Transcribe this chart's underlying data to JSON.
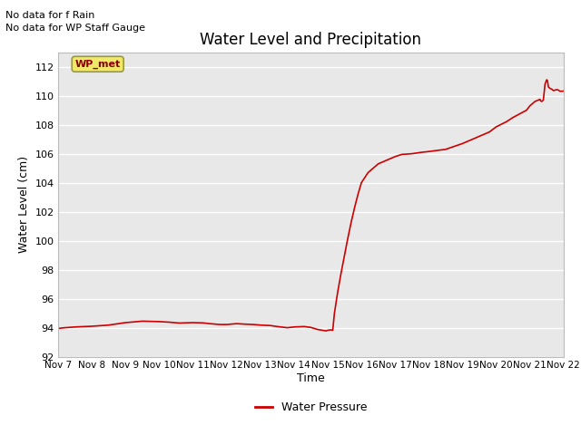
{
  "title": "Water Level and Precipitation",
  "xlabel": "Time",
  "ylabel": "Water Level (cm)",
  "ylim": [
    92,
    113
  ],
  "yticks": [
    92,
    94,
    96,
    98,
    100,
    102,
    104,
    106,
    108,
    110,
    112
  ],
  "background_color": "#e8e8e8",
  "line_color": "#cc0000",
  "legend_label": "Water Pressure",
  "legend_line_color": "#cc0000",
  "annotation_line1": "No data for f Rain",
  "annotation_line2": "No data for WP Staff Gauge",
  "wp_met_label": "WP_met",
  "wp_met_bg": "#f0e868",
  "wp_met_border": "#999944",
  "x_tick_labels": [
    "Nov 7",
    "Nov 8",
    "Nov 9",
    "Nov 10",
    "Nov 11",
    "Nov 12",
    "Nov 13",
    "Nov 14",
    "Nov 15",
    "Nov 16",
    "Nov 17",
    "Nov 18",
    "Nov 19",
    "Nov 20",
    "Nov 21",
    "Nov 22"
  ],
  "water_level_data": [
    [
      0,
      93.95
    ],
    [
      0.2,
      94.0
    ],
    [
      0.5,
      94.05
    ],
    [
      1.0,
      94.1
    ],
    [
      1.5,
      94.18
    ],
    [
      2.0,
      94.35
    ],
    [
      2.5,
      94.45
    ],
    [
      3.0,
      94.42
    ],
    [
      3.3,
      94.38
    ],
    [
      3.6,
      94.32
    ],
    [
      4.0,
      94.35
    ],
    [
      4.3,
      94.33
    ],
    [
      4.5,
      94.28
    ],
    [
      4.8,
      94.22
    ],
    [
      5.0,
      94.22
    ],
    [
      5.3,
      94.28
    ],
    [
      5.5,
      94.25
    ],
    [
      5.8,
      94.22
    ],
    [
      6.0,
      94.18
    ],
    [
      6.3,
      94.15
    ],
    [
      6.5,
      94.08
    ],
    [
      6.8,
      94.0
    ],
    [
      7.0,
      94.05
    ],
    [
      7.3,
      94.08
    ],
    [
      7.5,
      94.02
    ],
    [
      7.7,
      93.88
    ],
    [
      7.85,
      93.82
    ],
    [
      7.95,
      93.78
    ],
    [
      8.0,
      93.82
    ],
    [
      8.1,
      93.85
    ],
    [
      8.15,
      93.82
    ],
    [
      8.2,
      95.0
    ],
    [
      8.3,
      96.5
    ],
    [
      8.4,
      97.8
    ],
    [
      8.5,
      99.0
    ],
    [
      8.6,
      100.2
    ],
    [
      8.7,
      101.3
    ],
    [
      8.8,
      102.3
    ],
    [
      8.9,
      103.2
    ],
    [
      9.0,
      104.0
    ],
    [
      9.2,
      104.7
    ],
    [
      9.5,
      105.3
    ],
    [
      9.8,
      105.6
    ],
    [
      10.0,
      105.8
    ],
    [
      10.2,
      105.95
    ],
    [
      10.5,
      106.0
    ],
    [
      10.8,
      106.1
    ],
    [
      11.0,
      106.15
    ],
    [
      11.5,
      106.3
    ],
    [
      12.0,
      106.7
    ],
    [
      12.3,
      107.0
    ],
    [
      12.5,
      107.2
    ],
    [
      12.8,
      107.5
    ],
    [
      13.0,
      107.85
    ],
    [
      13.3,
      108.2
    ],
    [
      13.5,
      108.5
    ],
    [
      13.7,
      108.75
    ],
    [
      13.9,
      109.0
    ],
    [
      14.0,
      109.3
    ],
    [
      14.1,
      109.5
    ],
    [
      14.15,
      109.6
    ],
    [
      14.2,
      109.65
    ],
    [
      14.25,
      109.7
    ],
    [
      14.3,
      109.75
    ],
    [
      14.32,
      109.65
    ],
    [
      14.35,
      109.6
    ],
    [
      14.4,
      109.7
    ],
    [
      14.45,
      110.8
    ],
    [
      14.5,
      111.1
    ],
    [
      14.52,
      111.05
    ],
    [
      14.55,
      110.6
    ],
    [
      14.6,
      110.5
    ],
    [
      14.65,
      110.45
    ],
    [
      14.7,
      110.35
    ],
    [
      14.8,
      110.42
    ],
    [
      14.85,
      110.38
    ],
    [
      14.9,
      110.3
    ],
    [
      15.0,
      110.32
    ]
  ]
}
